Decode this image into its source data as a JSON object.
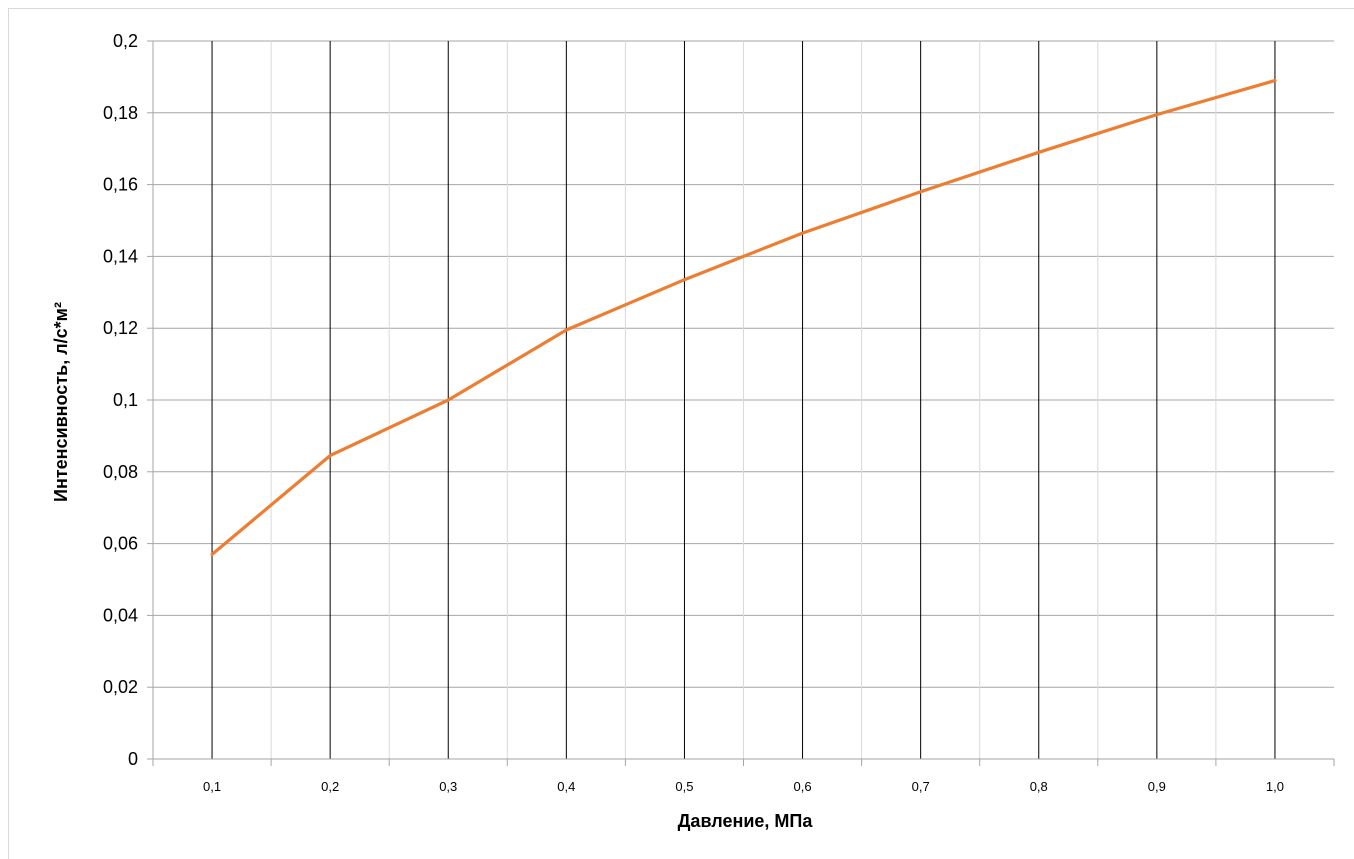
{
  "chart_data": {
    "type": "line",
    "title": "",
    "xlabel": "Давление, МПа",
    "ylabel": "Интенсивность, л/с*м²",
    "categories": [
      "0,1",
      "0,2",
      "0,3",
      "0,4",
      "0,5",
      "0,6",
      "0,7",
      "0,8",
      "0,9",
      "1,0"
    ],
    "x": [
      0.1,
      0.2,
      0.3,
      0.4,
      0.5,
      0.6,
      0.7,
      0.8,
      0.9,
      1.0
    ],
    "series": [
      {
        "values": [
          0.057,
          0.0845,
          0.1,
          0.1195,
          0.1335,
          0.1465,
          0.158,
          0.169,
          0.1795,
          0.189
        ],
        "color": "#ED7D31"
      }
    ],
    "ylim": [
      0,
      0.2
    ],
    "yticks": [
      "0",
      "0,02",
      "0,04",
      "0,06",
      "0,08",
      "0,1",
      "0,12",
      "0,14",
      "0,16",
      "0,18",
      "0,2"
    ],
    "grid": true,
    "legend": "none",
    "colors": {
      "line": "#ED7D31",
      "major_grid": "#000000",
      "minor_grid": "#d9d9d9",
      "hgrid": "#a6a6a6"
    }
  }
}
